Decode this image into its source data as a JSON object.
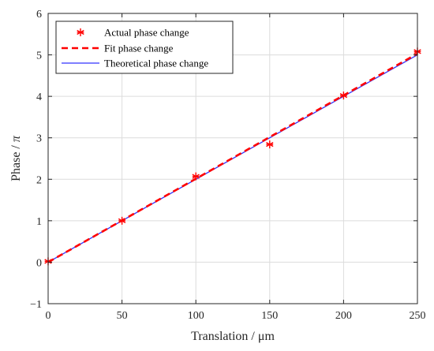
{
  "chart_data": {
    "type": "line",
    "xlabel": "Translation / μm",
    "ylabel_text": "Phase / ",
    "ylabel_symbol": "π",
    "xlim": [
      0,
      250
    ],
    "ylim": [
      -1,
      6
    ],
    "xticks": [
      0,
      50,
      100,
      150,
      200,
      250
    ],
    "yticks": [
      -1,
      0,
      1,
      2,
      3,
      4,
      5,
      6
    ],
    "xtick_labels": [
      "0",
      "50",
      "100",
      "150",
      "200",
      "250"
    ],
    "ytick_labels": [
      "−1",
      "0",
      "1",
      "2",
      "3",
      "4",
      "5",
      "6"
    ],
    "grid": true,
    "legend_position": "top-left",
    "series": [
      {
        "name": "Actual phase change",
        "kind": "markers",
        "marker": "asterisk",
        "color": "#ff0000",
        "x": [
          0,
          50,
          100,
          150,
          200,
          250
        ],
        "y": [
          0.02,
          1.0,
          2.07,
          2.84,
          4.02,
          5.08
        ]
      },
      {
        "name": "Fit phase change",
        "kind": "dashed-line",
        "color": "#ff0000",
        "x": [
          0,
          250
        ],
        "y": [
          0.0,
          5.03
        ]
      },
      {
        "name": "Theoretical phase change",
        "kind": "line",
        "color": "#3333ff",
        "x": [
          0,
          250
        ],
        "y": [
          0.0,
          5.0
        ]
      }
    ]
  }
}
